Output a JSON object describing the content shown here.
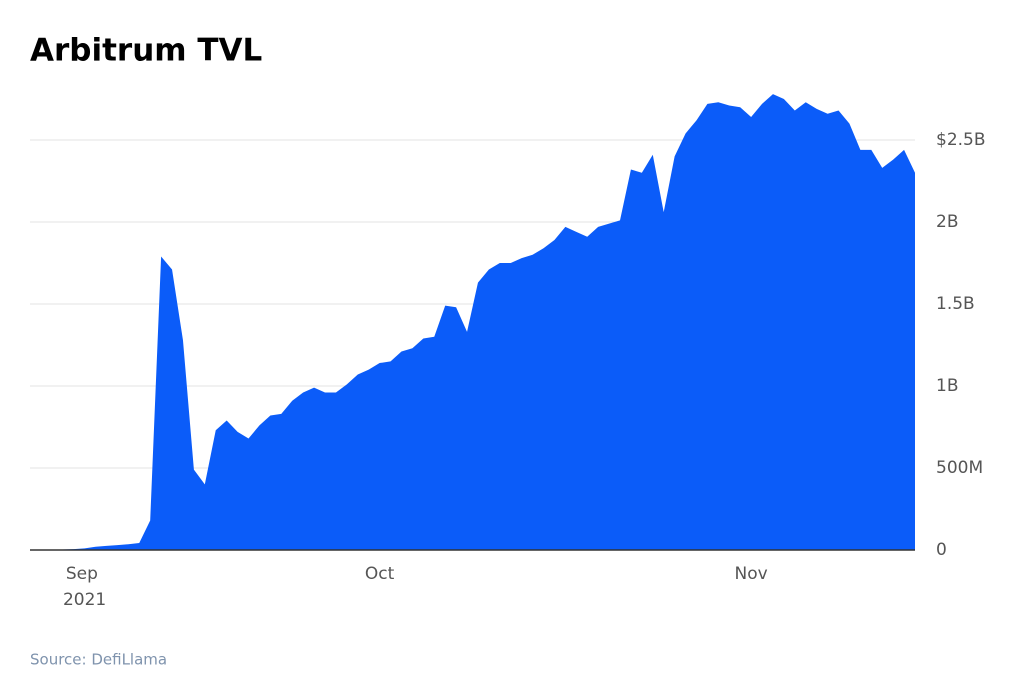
{
  "chart_data": {
    "type": "area",
    "title": "Arbitrum TVL",
    "source": "Source: DefiLlama",
    "color": "#0b5cf9",
    "grid": true,
    "categories": [
      null,
      null,
      null,
      null,
      null,
      "Sep 2021",
      null,
      null,
      null,
      null,
      null,
      null,
      null,
      null,
      null,
      null,
      null,
      null,
      null,
      null,
      null,
      null,
      null,
      null,
      null,
      null,
      null,
      null,
      null,
      null,
      null,
      null,
      "Oct",
      null,
      null,
      null,
      null,
      null,
      null,
      null,
      null,
      null,
      null,
      null,
      null,
      null,
      null,
      null,
      null,
      null,
      null,
      null,
      null,
      null,
      null,
      null,
      null,
      null,
      null,
      null,
      null,
      null,
      null,
      null,
      null,
      null,
      "Nov",
      null,
      null,
      null,
      null,
      null,
      null,
      null,
      null,
      null,
      null,
      null,
      null,
      null,
      null,
      null
    ],
    "values": [
      0,
      0,
      2000000,
      3000000,
      5000000,
      10000000,
      20000000,
      25000000,
      30000000,
      35000000,
      43000000,
      180000000,
      1790000000,
      1710000000,
      1280000000,
      490000000,
      400000000,
      730000000,
      790000000,
      720000000,
      680000000,
      760000000,
      820000000,
      830000000,
      910000000,
      960000000,
      990000000,
      960000000,
      960000000,
      1010000000,
      1070000000,
      1100000000,
      1140000000,
      1150000000,
      1210000000,
      1230000000,
      1290000000,
      1300000000,
      1490000000,
      1480000000,
      1330000000,
      1630000000,
      1710000000,
      1750000000,
      1750000000,
      1780000000,
      1800000000,
      1840000000,
      1890000000,
      1970000000,
      1940000000,
      1910000000,
      1970000000,
      1990000000,
      2010000000,
      2320000000,
      2300000000,
      2410000000,
      2060000000,
      2400000000,
      2540000000,
      2620000000,
      2720000000,
      2730000000,
      2710000000,
      2700000000,
      2640000000,
      2720000000,
      2780000000,
      2750000000,
      2680000000,
      2730000000,
      2690000000,
      2660000000,
      2680000000,
      2600000000,
      2440000000,
      2440000000,
      2330000000,
      2380000000,
      2440000000,
      2300000000
    ],
    "ylim": [
      0,
      2850000000
    ],
    "yticks": [
      0,
      {
        "value": 500000000,
        "label": "500M"
      },
      {
        "value": 1000000000,
        "label": "1B"
      },
      {
        "value": 1500000000,
        "label": "1.5B"
      },
      {
        "value": 2000000000,
        "label": "2B"
      },
      {
        "value": 2500000000,
        "label": "$2.5B"
      }
    ]
  }
}
